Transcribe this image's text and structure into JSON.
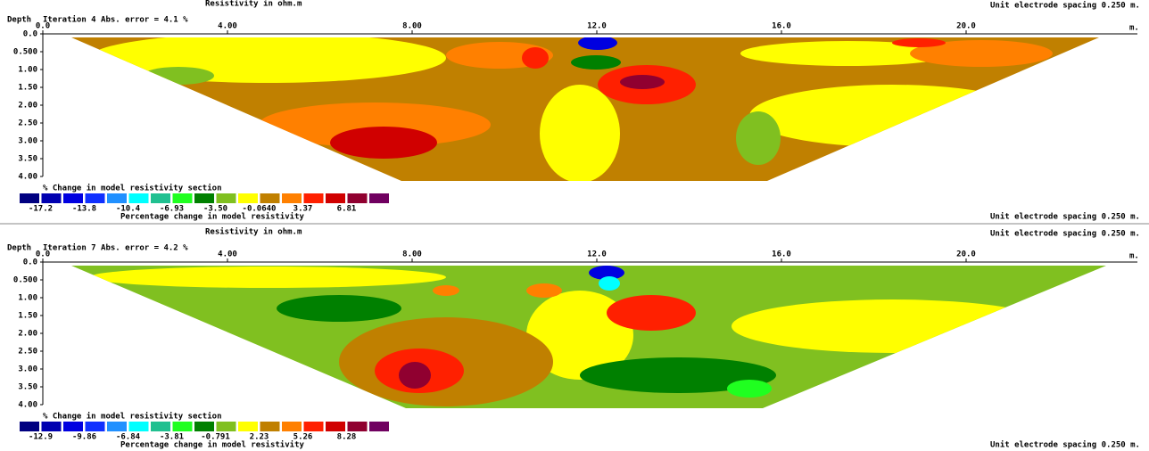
{
  "chart_data": [
    {
      "type": "contour",
      "title": "Resistivity in ohm.m",
      "note": "Unit electrode spacing 0.250 m.",
      "y_label": "Depth",
      "subtitle": "Iteration 4 Abs. error = 4.1 %",
      "x_unit": "m.",
      "xlim": [
        0,
        20
      ],
      "xticks": [
        {
          "value": 0,
          "label": "0.0"
        },
        {
          "value": 4,
          "label": "4.00"
        },
        {
          "value": 8,
          "label": "8.00"
        },
        {
          "value": 12,
          "label": "12.0"
        },
        {
          "value": 16,
          "label": "16.0"
        },
        {
          "value": 20,
          "label": "20.0"
        }
      ],
      "ylim": [
        0,
        4
      ],
      "yticks": [
        {
          "value": 0,
          "label": "0.0"
        },
        {
          "value": 0.5,
          "label": "0.500"
        },
        {
          "value": 1,
          "label": "1.00"
        },
        {
          "value": 1.5,
          "label": "1.50"
        },
        {
          "value": 2,
          "label": "2.00"
        },
        {
          "value": 2.5,
          "label": "2.50"
        },
        {
          "value": 3,
          "label": "3.00"
        },
        {
          "value": 3.5,
          "label": "3.50"
        },
        {
          "value": 4,
          "label": "4.00"
        }
      ],
      "legend_title": "% Change in model resistivity section",
      "legend_caption": "Percentage change in model resistivity",
      "footer": "Unit electrode spacing 0.250 m.",
      "legend_colors": [
        "#000080",
        "#0000b0",
        "#0000e0",
        "#1030ff",
        "#2090ff",
        "#00ffff",
        "#20c090",
        "#20ff20",
        "#008000",
        "#80c020",
        "#ffff00",
        "#c08000",
        "#ff8000",
        "#ff2000",
        "#d00000",
        "#900030",
        "#700060"
      ],
      "legend_values": [
        -17.2,
        -13.8,
        -10.4,
        -6.93,
        -3.5,
        -0.064,
        3.37,
        6.81
      ],
      "legend_value_labels": [
        "-17.2",
        "-13.8",
        "-10.4",
        "-6.93",
        "-3.50",
        "-0.0640",
        "3.37",
        "6.81"
      ]
    },
    {
      "type": "contour",
      "title": "Resistivity in ohm.m",
      "note": "Unit electrode spacing 0.250 m.",
      "y_label": "Depth",
      "subtitle": "Iteration 7 Abs. error = 4.2 %",
      "x_unit": "m.",
      "xlim": [
        0,
        20
      ],
      "xticks": [
        {
          "value": 0,
          "label": "0.0"
        },
        {
          "value": 4,
          "label": "4.00"
        },
        {
          "value": 8,
          "label": "8.00"
        },
        {
          "value": 12,
          "label": "12.0"
        },
        {
          "value": 16,
          "label": "16.0"
        },
        {
          "value": 20,
          "label": "20.0"
        }
      ],
      "ylim": [
        0,
        4
      ],
      "yticks": [
        {
          "value": 0,
          "label": "0.0"
        },
        {
          "value": 0.5,
          "label": "0.500"
        },
        {
          "value": 1,
          "label": "1.00"
        },
        {
          "value": 1.5,
          "label": "1.50"
        },
        {
          "value": 2,
          "label": "2.00"
        },
        {
          "value": 2.5,
          "label": "2.50"
        },
        {
          "value": 3,
          "label": "3.00"
        },
        {
          "value": 3.5,
          "label": "3.50"
        },
        {
          "value": 4,
          "label": "4.00"
        }
      ],
      "legend_title": "% Change in model resistivity section",
      "legend_caption": "Percentage change in model resistivity",
      "footer": "Unit electrode spacing 0.250 m.",
      "legend_colors": [
        "#000080",
        "#0000b0",
        "#0000e0",
        "#1030ff",
        "#2090ff",
        "#00ffff",
        "#20c090",
        "#20ff20",
        "#008000",
        "#80c020",
        "#ffff00",
        "#c08000",
        "#ff8000",
        "#ff2000",
        "#d00000",
        "#900030",
        "#700060"
      ],
      "legend_values": [
        -12.9,
        -9.86,
        -6.84,
        -3.81,
        -0.791,
        2.23,
        5.26,
        8.28
      ],
      "legend_value_labels": [
        "-12.9",
        "-9.86",
        "-6.84",
        "-3.81",
        "-0.791",
        "2.23",
        "5.26",
        "8.28"
      ]
    }
  ]
}
